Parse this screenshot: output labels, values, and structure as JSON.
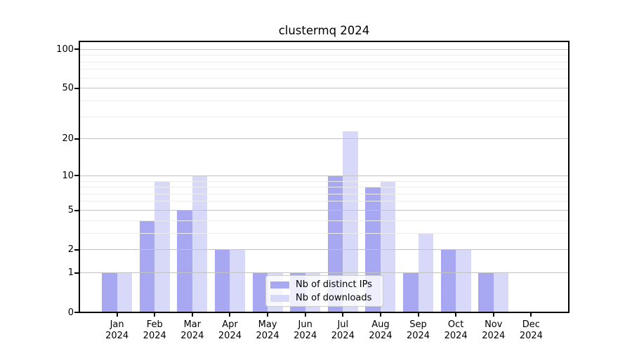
{
  "chart_data": {
    "type": "bar",
    "title": "clustermq 2024",
    "categories": [
      "Jan",
      "Feb",
      "Mar",
      "Apr",
      "May",
      "Jun",
      "Jul",
      "Aug",
      "Sep",
      "Oct",
      "Nov",
      "Dec"
    ],
    "year_label": "2024",
    "series": [
      {
        "name": "Nb of distinct IPs",
        "color": "#a8a8f2",
        "values": [
          1,
          4,
          5,
          2,
          1,
          1,
          10,
          8,
          1,
          2,
          1,
          0
        ]
      },
      {
        "name": "Nb of downloads",
        "color": "#d8d8f8",
        "values": [
          1,
          9,
          10,
          2,
          1,
          1,
          23,
          9,
          3,
          2,
          1,
          0
        ]
      }
    ],
    "yscale": "log1p",
    "ylim": [
      0,
      115
    ],
    "yticks_major": [
      0,
      1,
      2,
      5,
      10,
      20,
      50,
      100
    ],
    "yticks_minor": [
      3,
      4,
      6,
      7,
      8,
      9,
      30,
      40,
      60,
      70,
      80,
      90
    ],
    "grid": true,
    "legend_position": "lower-center-inside",
    "colors": {
      "grid_major": "#c3c3c3",
      "grid_minor": "#ececec",
      "axis": "#000000",
      "background": "#ffffff"
    }
  }
}
